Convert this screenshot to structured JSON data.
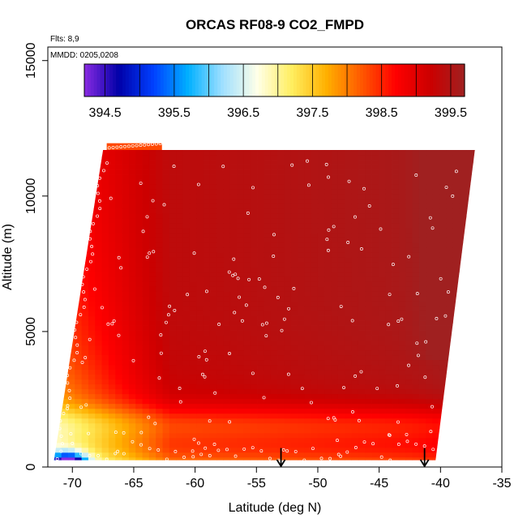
{
  "chart_data": {
    "type": "heatmap",
    "title": "ORCAS RF08-9 CO2_FMPD",
    "flights_label": "Flts: 8,9",
    "dates_label": "MMDD: 0205,0208",
    "xlabel": "Latitude (deg N)",
    "ylabel": "Altitude (m)",
    "xlim": [
      -72,
      -35
    ],
    "ylim": [
      0,
      15500
    ],
    "x_ticks": [
      -70,
      -65,
      -60,
      -55,
      -50,
      -45,
      -40,
      -35
    ],
    "x_tick_labels": [
      "-70",
      "-65",
      "-60",
      "-55",
      "-50",
      "-45",
      "-40",
      "-35"
    ],
    "y_ticks": [
      0,
      5000,
      10000,
      15000
    ],
    "y_tick_labels": [
      "0",
      "5000",
      "10000",
      "15000"
    ],
    "colorbar": {
      "min": 394.2,
      "max": 399.7,
      "ticks": [
        394.5,
        395.5,
        396.5,
        397.5,
        398.5,
        399.5
      ],
      "tick_labels": [
        "394.5",
        "395.5",
        "396.5",
        "397.5",
        "398.5",
        "399.5"
      ],
      "colors": [
        "#8a2be2",
        "#0000a8",
        "#0040ff",
        "#00b0ff",
        "#a0e0ff",
        "#ffffe8",
        "#ffee60",
        "#ffb000",
        "#ff5a00",
        "#ff0000",
        "#cc0000",
        "#a02020"
      ]
    },
    "curtain_bounds": {
      "top_altitude": 11700,
      "bottom_altitude": 250,
      "left_lat_at_top": -67.5,
      "left_lat_at_bottom": -71.5,
      "right_lat_at_top": -37.2,
      "right_lat_at_bottom": -40.4
    },
    "co2_field_summary": [
      {
        "altitude": 11000,
        "lat": -66,
        "co2": 398.8
      },
      {
        "altitude": 11000,
        "lat": -50,
        "co2": 399.4
      },
      {
        "altitude": 11000,
        "lat": -40,
        "co2": 399.6
      },
      {
        "altitude": 8000,
        "lat": -66,
        "co2": 398.9
      },
      {
        "altitude": 8000,
        "lat": -50,
        "co2": 399.5
      },
      {
        "altitude": 8000,
        "lat": -39,
        "co2": 399.7
      },
      {
        "altitude": 5000,
        "lat": -67,
        "co2": 398.0
      },
      {
        "altitude": 5000,
        "lat": -55,
        "co2": 399.0
      },
      {
        "altitude": 5000,
        "lat": -42,
        "co2": 399.3
      },
      {
        "altitude": 2500,
        "lat": -69,
        "co2": 397.8
      },
      {
        "altitude": 2500,
        "lat": -55,
        "co2": 398.3
      },
      {
        "altitude": 1500,
        "lat": -53,
        "co2": 397.9
      },
      {
        "altitude": 500,
        "lat": -70.5,
        "co2": 394.5
      },
      {
        "altitude": 500,
        "lat": -60,
        "co2": 397.7
      }
    ],
    "arrows": [
      {
        "lat": -53.0,
        "label": "flight-marker"
      },
      {
        "lat": -41.3,
        "label": "flight-marker"
      }
    ]
  }
}
